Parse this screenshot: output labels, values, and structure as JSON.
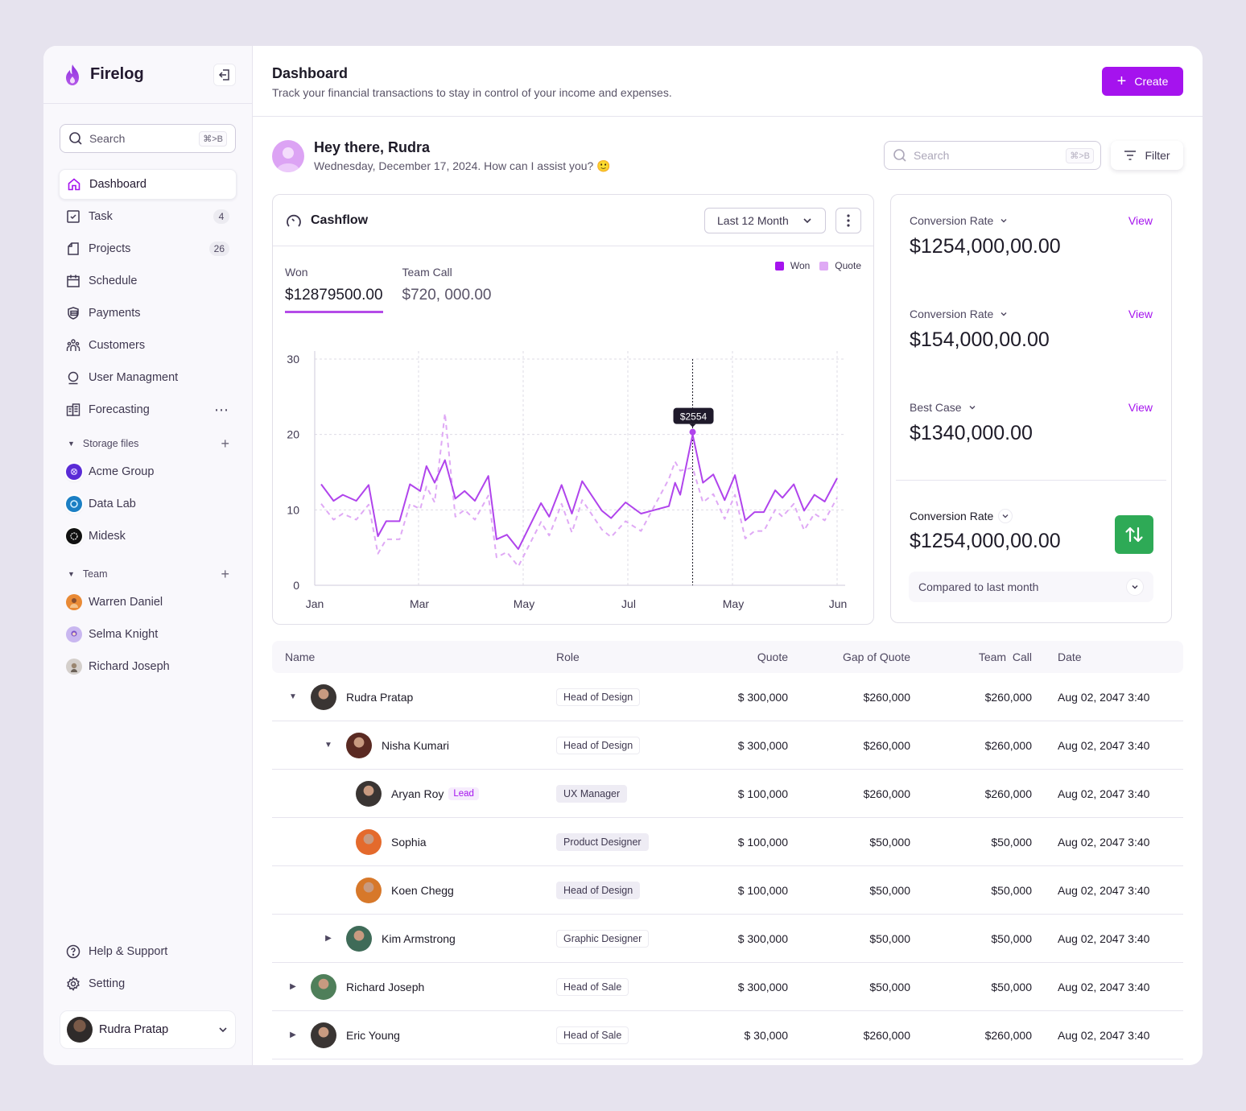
{
  "app": {
    "name": "Firelog"
  },
  "sidebar": {
    "search": {
      "placeholder": "Search",
      "shortcut": "⌘>B"
    },
    "items": [
      {
        "label": "Dashboard",
        "icon": "home-icon",
        "active": true
      },
      {
        "label": "Task",
        "icon": "checkbox-icon",
        "count": "4"
      },
      {
        "label": "Projects",
        "icon": "document-icon",
        "count": "26"
      },
      {
        "label": "Schedule",
        "icon": "calendar-icon"
      },
      {
        "label": "Payments",
        "icon": "wallet-icon"
      },
      {
        "label": "Customers",
        "icon": "users-icon"
      },
      {
        "label": "User Managment",
        "icon": "user-icon"
      },
      {
        "label": "Forecasting",
        "icon": "building-icon",
        "more": "⋯"
      }
    ],
    "storage": {
      "title": "Storage files",
      "items": [
        {
          "label": "Acme Group",
          "color": "#5a2bd6"
        },
        {
          "label": "Data Lab",
          "color": "#1b7fc4"
        },
        {
          "label": "Midesk",
          "color": "#111111"
        }
      ]
    },
    "team": {
      "title": "Team",
      "items": [
        {
          "label": "Warren Daniel",
          "color": "#e98a35"
        },
        {
          "label": "Selma Knight",
          "color": "#b59be8"
        },
        {
          "label": "Richard Joseph",
          "color": "#b9b2ad"
        }
      ]
    },
    "bottom": [
      {
        "label": "Help & Support",
        "icon": "help-icon"
      },
      {
        "label": "Setting",
        "icon": "gear-icon"
      }
    ],
    "user": {
      "name": "Rudra Pratap"
    }
  },
  "header": {
    "title": "Dashboard",
    "subtitle": "Track your financial transactions to stay in control of your income and expenses.",
    "create_label": "Create"
  },
  "greeting": {
    "title": "Hey there, Rudra",
    "subtitle": "Wednesday, December 17, 2024. How can I assist you? 🙂"
  },
  "toolbar": {
    "search_placeholder": "Search",
    "search_shortcut": "⌘>B",
    "filter_label": "Filter"
  },
  "cashflow": {
    "title": "Cashflow",
    "range": "Last 12 Month",
    "tabs": [
      {
        "label": "Won",
        "value": "$12879500.00",
        "active": true
      },
      {
        "label": "Team Call",
        "value": "$720, 000.00"
      }
    ],
    "legend": [
      {
        "label": "Won",
        "color": "#a513ee"
      },
      {
        "label": "Quote",
        "color": "#dfa9f5"
      }
    ],
    "tooltip": "$2554"
  },
  "chart_data": {
    "type": "line",
    "title": "Cashflow",
    "xlabel": "",
    "ylabel": "",
    "ylim": [
      0,
      30
    ],
    "yticks": [
      0,
      10,
      20,
      30
    ],
    "xticks": [
      "Jan",
      "Mar",
      "May",
      "Jul",
      "May",
      "Jun"
    ],
    "grid": true,
    "legend_position": "top-right",
    "x": [
      0,
      0.12,
      0.21,
      0.34,
      0.46,
      0.55,
      0.63,
      0.76,
      0.86,
      0.96,
      1.02,
      1.1,
      1.2,
      1.3,
      1.39,
      1.49,
      1.62,
      1.7,
      1.8,
      1.91,
      2.13,
      2.21,
      2.33,
      2.43,
      2.53,
      2.72,
      2.81,
      2.95,
      3.1,
      3.37,
      3.43,
      3.48,
      3.6,
      3.7,
      3.8,
      3.91,
      4.01,
      4.11,
      4.2,
      4.29,
      4.4,
      4.47,
      4.58,
      4.68,
      4.78,
      4.88,
      5.0
    ],
    "series": [
      {
        "name": "Won",
        "style": "solid",
        "values": [
          13.4,
          11.2,
          12.0,
          11.2,
          13.3,
          6.5,
          8.5,
          8.5,
          13.4,
          12.5,
          15.8,
          13.6,
          16.6,
          11.5,
          12.5,
          11.2,
          14.5,
          6.1,
          6.7,
          4.8,
          10.9,
          9.1,
          13.3,
          9.5,
          13.8,
          9.9,
          8.9,
          11.0,
          9.5,
          10.5,
          13.6,
          12.0,
          20.0,
          13.6,
          14.7,
          11.3,
          14.6,
          8.6,
          9.7,
          9.7,
          12.6,
          11.6,
          13.4,
          9.9,
          12.0,
          11.1,
          14.2
        ]
      },
      {
        "name": "Quote",
        "style": "dashed",
        "values": [
          10.8,
          8.7,
          9.5,
          8.7,
          10.7,
          4.2,
          6.1,
          6.1,
          10.8,
          10.1,
          13.1,
          11.0,
          22.8,
          9.1,
          10.0,
          8.7,
          11.9,
          3.7,
          4.4,
          2.5,
          8.4,
          6.6,
          10.8,
          7.0,
          11.3,
          7.4,
          6.4,
          8.5,
          7.2,
          14.1,
          16.4,
          15.2,
          15.6,
          11.0,
          12.1,
          8.8,
          12.0,
          6.2,
          7.2,
          7.2,
          10.0,
          9.1,
          10.8,
          7.3,
          9.5,
          8.6,
          11.6
        ]
      }
    ],
    "highlight": {
      "index": 32,
      "label": "$2554"
    }
  },
  "stats": [
    {
      "label": "Conversion Rate",
      "value": "$1254,000,00.00",
      "link": "View"
    },
    {
      "label": "Conversion Rate",
      "value": "$154,000,00.00",
      "link": "View"
    },
    {
      "label": "Best Case",
      "value": "$1340,000.00",
      "link": "View"
    }
  ],
  "summary": {
    "label": "Conversion Rate",
    "value": "$1254,000,00.00",
    "compare": "Compared to last month",
    "accent": "#2eaa56"
  },
  "table": {
    "columns": [
      "Name",
      "Role",
      "Quote",
      "Gap of Quote",
      "Team  Call",
      "Date"
    ],
    "rows": [
      {
        "name": "Rudra Pratap",
        "level": 0,
        "caret": "down",
        "role": "Head of Design",
        "role_style": "outline",
        "quote": "$ 300,000",
        "gap": "$260,000",
        "call": "$260,000",
        "date": "Aug 02, 2047 3:40",
        "avatar": "#3a3533"
      },
      {
        "name": "Nisha Kumari",
        "level": 1,
        "caret": "down",
        "role": "Head of Design",
        "role_style": "outline",
        "quote": "$ 300,000",
        "gap": "$260,000",
        "call": "$260,000",
        "date": "Aug 02, 2047 3:40",
        "avatar": "#5a2a22"
      },
      {
        "name": "Aryan Roy",
        "level": 2,
        "caret": "",
        "badge": "Lead",
        "role": "UX Manager",
        "role_style": "filled",
        "quote": "$ 100,000",
        "gap": "$260,000",
        "call": "$260,000",
        "date": "Aug 02, 2047 3:40",
        "avatar": "#3a3533"
      },
      {
        "name": "Sophia",
        "level": 2,
        "caret": "",
        "role": "Product Designer",
        "role_style": "filled",
        "quote": "$ 100,000",
        "gap": "$50,000",
        "call": "$50,000",
        "date": "Aug 02, 2047 3:40",
        "avatar": "#e46a2c"
      },
      {
        "name": "Koen Chegg",
        "level": 2,
        "caret": "",
        "role": "Head of Design",
        "role_style": "filled",
        "quote": "$ 100,000",
        "gap": "$50,000",
        "call": "$50,000",
        "date": "Aug 02, 2047 3:40",
        "avatar": "#d7782a"
      },
      {
        "name": "Kim Armstrong",
        "level": 1,
        "caret": "right",
        "role": "Graphic Designer",
        "role_style": "outline",
        "quote": "$ 300,000",
        "gap": "$50,000",
        "call": "$50,000",
        "date": "Aug 02, 2047 3:40",
        "avatar": "#3f6b58"
      },
      {
        "name": "Richard Joseph",
        "level": 0,
        "caret": "right",
        "role": "Head of Sale",
        "role_style": "outline",
        "quote": "$ 300,000",
        "gap": "$50,000",
        "call": "$50,000",
        "date": "Aug 02, 2047 3:40",
        "avatar": "#4f7f5a"
      },
      {
        "name": "Eric Young",
        "level": 0,
        "caret": "right",
        "role": "Head of Sale",
        "role_style": "outline",
        "quote": "$ 30,000",
        "gap": "$260,000",
        "call": "$260,000",
        "date": "Aug 02, 2047 3:40",
        "avatar": "#3a3533"
      }
    ]
  }
}
